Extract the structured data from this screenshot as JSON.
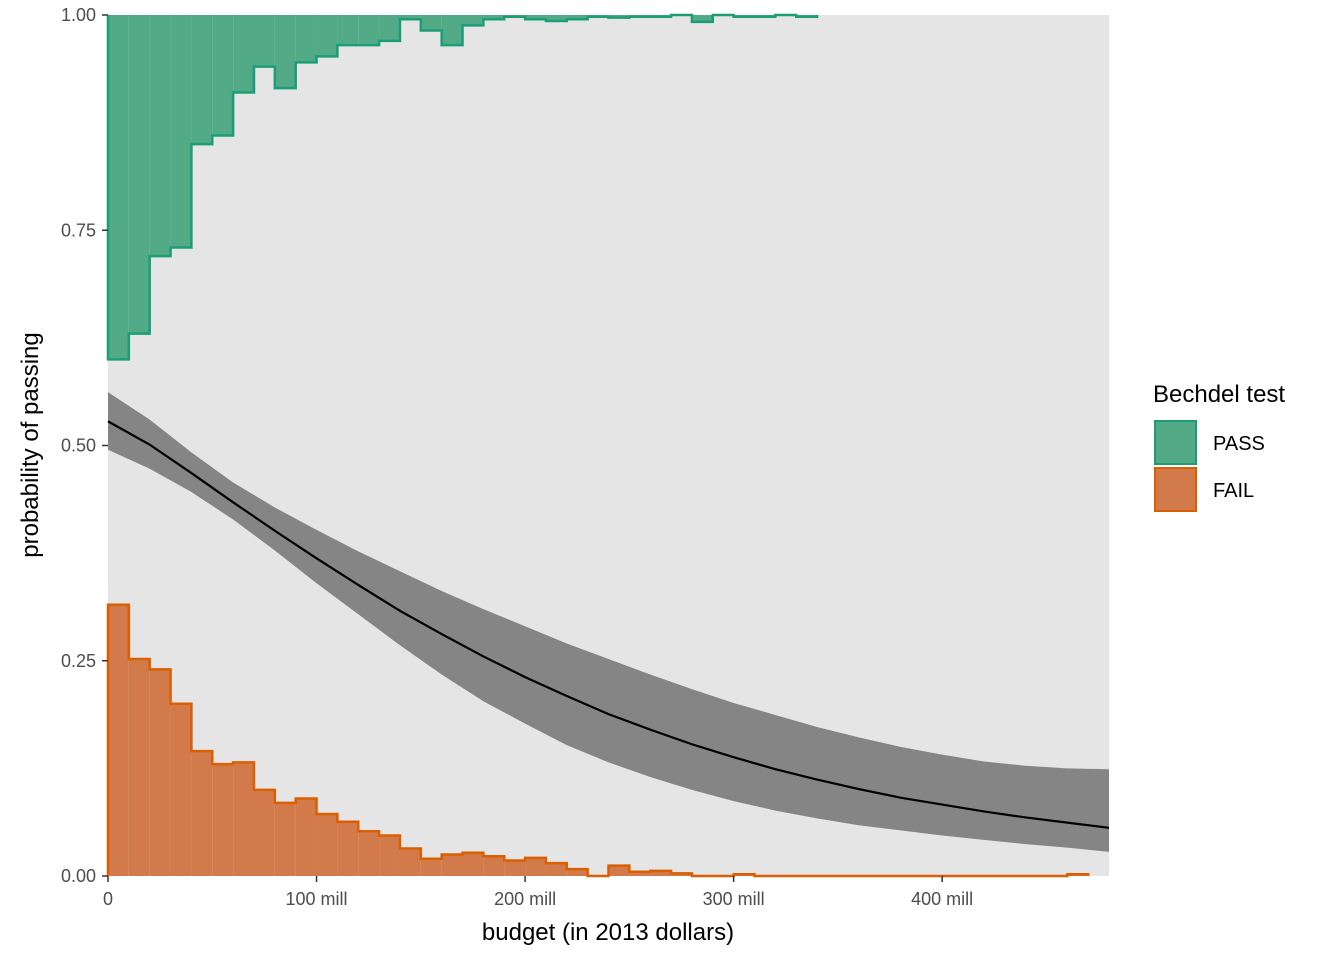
{
  "chart_data": {
    "type": "area",
    "title": "",
    "xlabel": "budget (in 2013 dollars)",
    "ylabel": "probability of passing",
    "xlim": [
      0,
      480
    ],
    "ylim": [
      0,
      1
    ],
    "x_ticks": [
      0,
      100,
      200,
      300,
      400
    ],
    "x_tick_labels": [
      "0",
      "100 mill",
      "200 mill",
      "300 mill",
      "400 mill"
    ],
    "y_ticks": [
      0,
      0.25,
      0.5,
      0.75,
      1.0
    ],
    "y_tick_labels": [
      "0.00",
      "0.25",
      "0.50",
      "0.75",
      "1.00"
    ],
    "grid": false,
    "legend": {
      "title": "Bechdel test",
      "position": "right",
      "entries": [
        {
          "label": "PASS",
          "fill": "#52aa87",
          "stroke": "#1b9e77"
        },
        {
          "label": "FAIL",
          "fill": "#d27a49",
          "stroke": "#d95f02"
        }
      ]
    },
    "bin_width": 10,
    "pass_histogram": {
      "name": "PASS",
      "bin_starts": [
        0,
        10,
        20,
        30,
        40,
        50,
        60,
        70,
        80,
        90,
        100,
        110,
        120,
        130,
        140,
        150,
        160,
        170,
        180,
        190,
        200,
        210,
        220,
        230,
        240,
        250,
        260,
        270,
        280,
        290,
        300,
        310,
        320,
        330
      ],
      "values": [
        0.4,
        0.37,
        0.28,
        0.27,
        0.15,
        0.14,
        0.09,
        0.06,
        0.085,
        0.055,
        0.048,
        0.035,
        0.035,
        0.03,
        0.005,
        0.018,
        0.035,
        0.012,
        0.005,
        0.002,
        0.005,
        0.007,
        0.005,
        0.002,
        0.003,
        0.002,
        0.002,
        0,
        0.008,
        0,
        0.002,
        0.002,
        0,
        0.002
      ]
    },
    "fail_histogram": {
      "name": "FAIL",
      "bin_starts": [
        0,
        10,
        20,
        30,
        40,
        50,
        60,
        70,
        80,
        90,
        100,
        110,
        120,
        130,
        140,
        150,
        160,
        170,
        180,
        190,
        200,
        210,
        220,
        230,
        240,
        250,
        260,
        270,
        280,
        290,
        300,
        310,
        320,
        330,
        340,
        350,
        360,
        370,
        380,
        390,
        400,
        410,
        420,
        430,
        440,
        450,
        460
      ],
      "values": [
        0.315,
        0.252,
        0.24,
        0.2,
        0.145,
        0.13,
        0.132,
        0.1,
        0.085,
        0.09,
        0.072,
        0.063,
        0.052,
        0.047,
        0.032,
        0.02,
        0.025,
        0.027,
        0.023,
        0.018,
        0.021,
        0.015,
        0.008,
        0,
        0.012,
        0.005,
        0.006,
        0.003,
        0,
        0,
        0.002,
        0,
        0,
        0,
        0,
        0,
        0,
        0,
        0,
        0,
        0,
        0,
        0,
        0,
        0,
        0,
        0.002
      ]
    },
    "fit": {
      "x": [
        0,
        20,
        40,
        60,
        80,
        100,
        120,
        140,
        160,
        180,
        200,
        220,
        240,
        260,
        280,
        300,
        320,
        340,
        360,
        380,
        400,
        420,
        440,
        460,
        480
      ],
      "y": [
        0.528,
        0.501,
        0.468,
        0.434,
        0.401,
        0.369,
        0.338,
        0.308,
        0.281,
        0.255,
        0.231,
        0.209,
        0.188,
        0.17,
        0.153,
        0.138,
        0.124,
        0.112,
        0.101,
        0.091,
        0.083,
        0.075,
        0.068,
        0.062,
        0.056
      ],
      "lower": [
        0.495,
        0.473,
        0.446,
        0.414,
        0.378,
        0.34,
        0.304,
        0.268,
        0.234,
        0.203,
        0.177,
        0.152,
        0.132,
        0.115,
        0.1,
        0.087,
        0.076,
        0.067,
        0.059,
        0.053,
        0.047,
        0.042,
        0.037,
        0.033,
        0.028
      ],
      "upper": [
        0.562,
        0.53,
        0.492,
        0.457,
        0.428,
        0.402,
        0.377,
        0.354,
        0.331,
        0.31,
        0.29,
        0.27,
        0.252,
        0.234,
        0.217,
        0.201,
        0.187,
        0.173,
        0.161,
        0.15,
        0.141,
        0.133,
        0.128,
        0.125,
        0.124
      ]
    },
    "colors": {
      "panel": "#e5e5e5",
      "ribbon": "#858585",
      "line": "#000000"
    }
  }
}
